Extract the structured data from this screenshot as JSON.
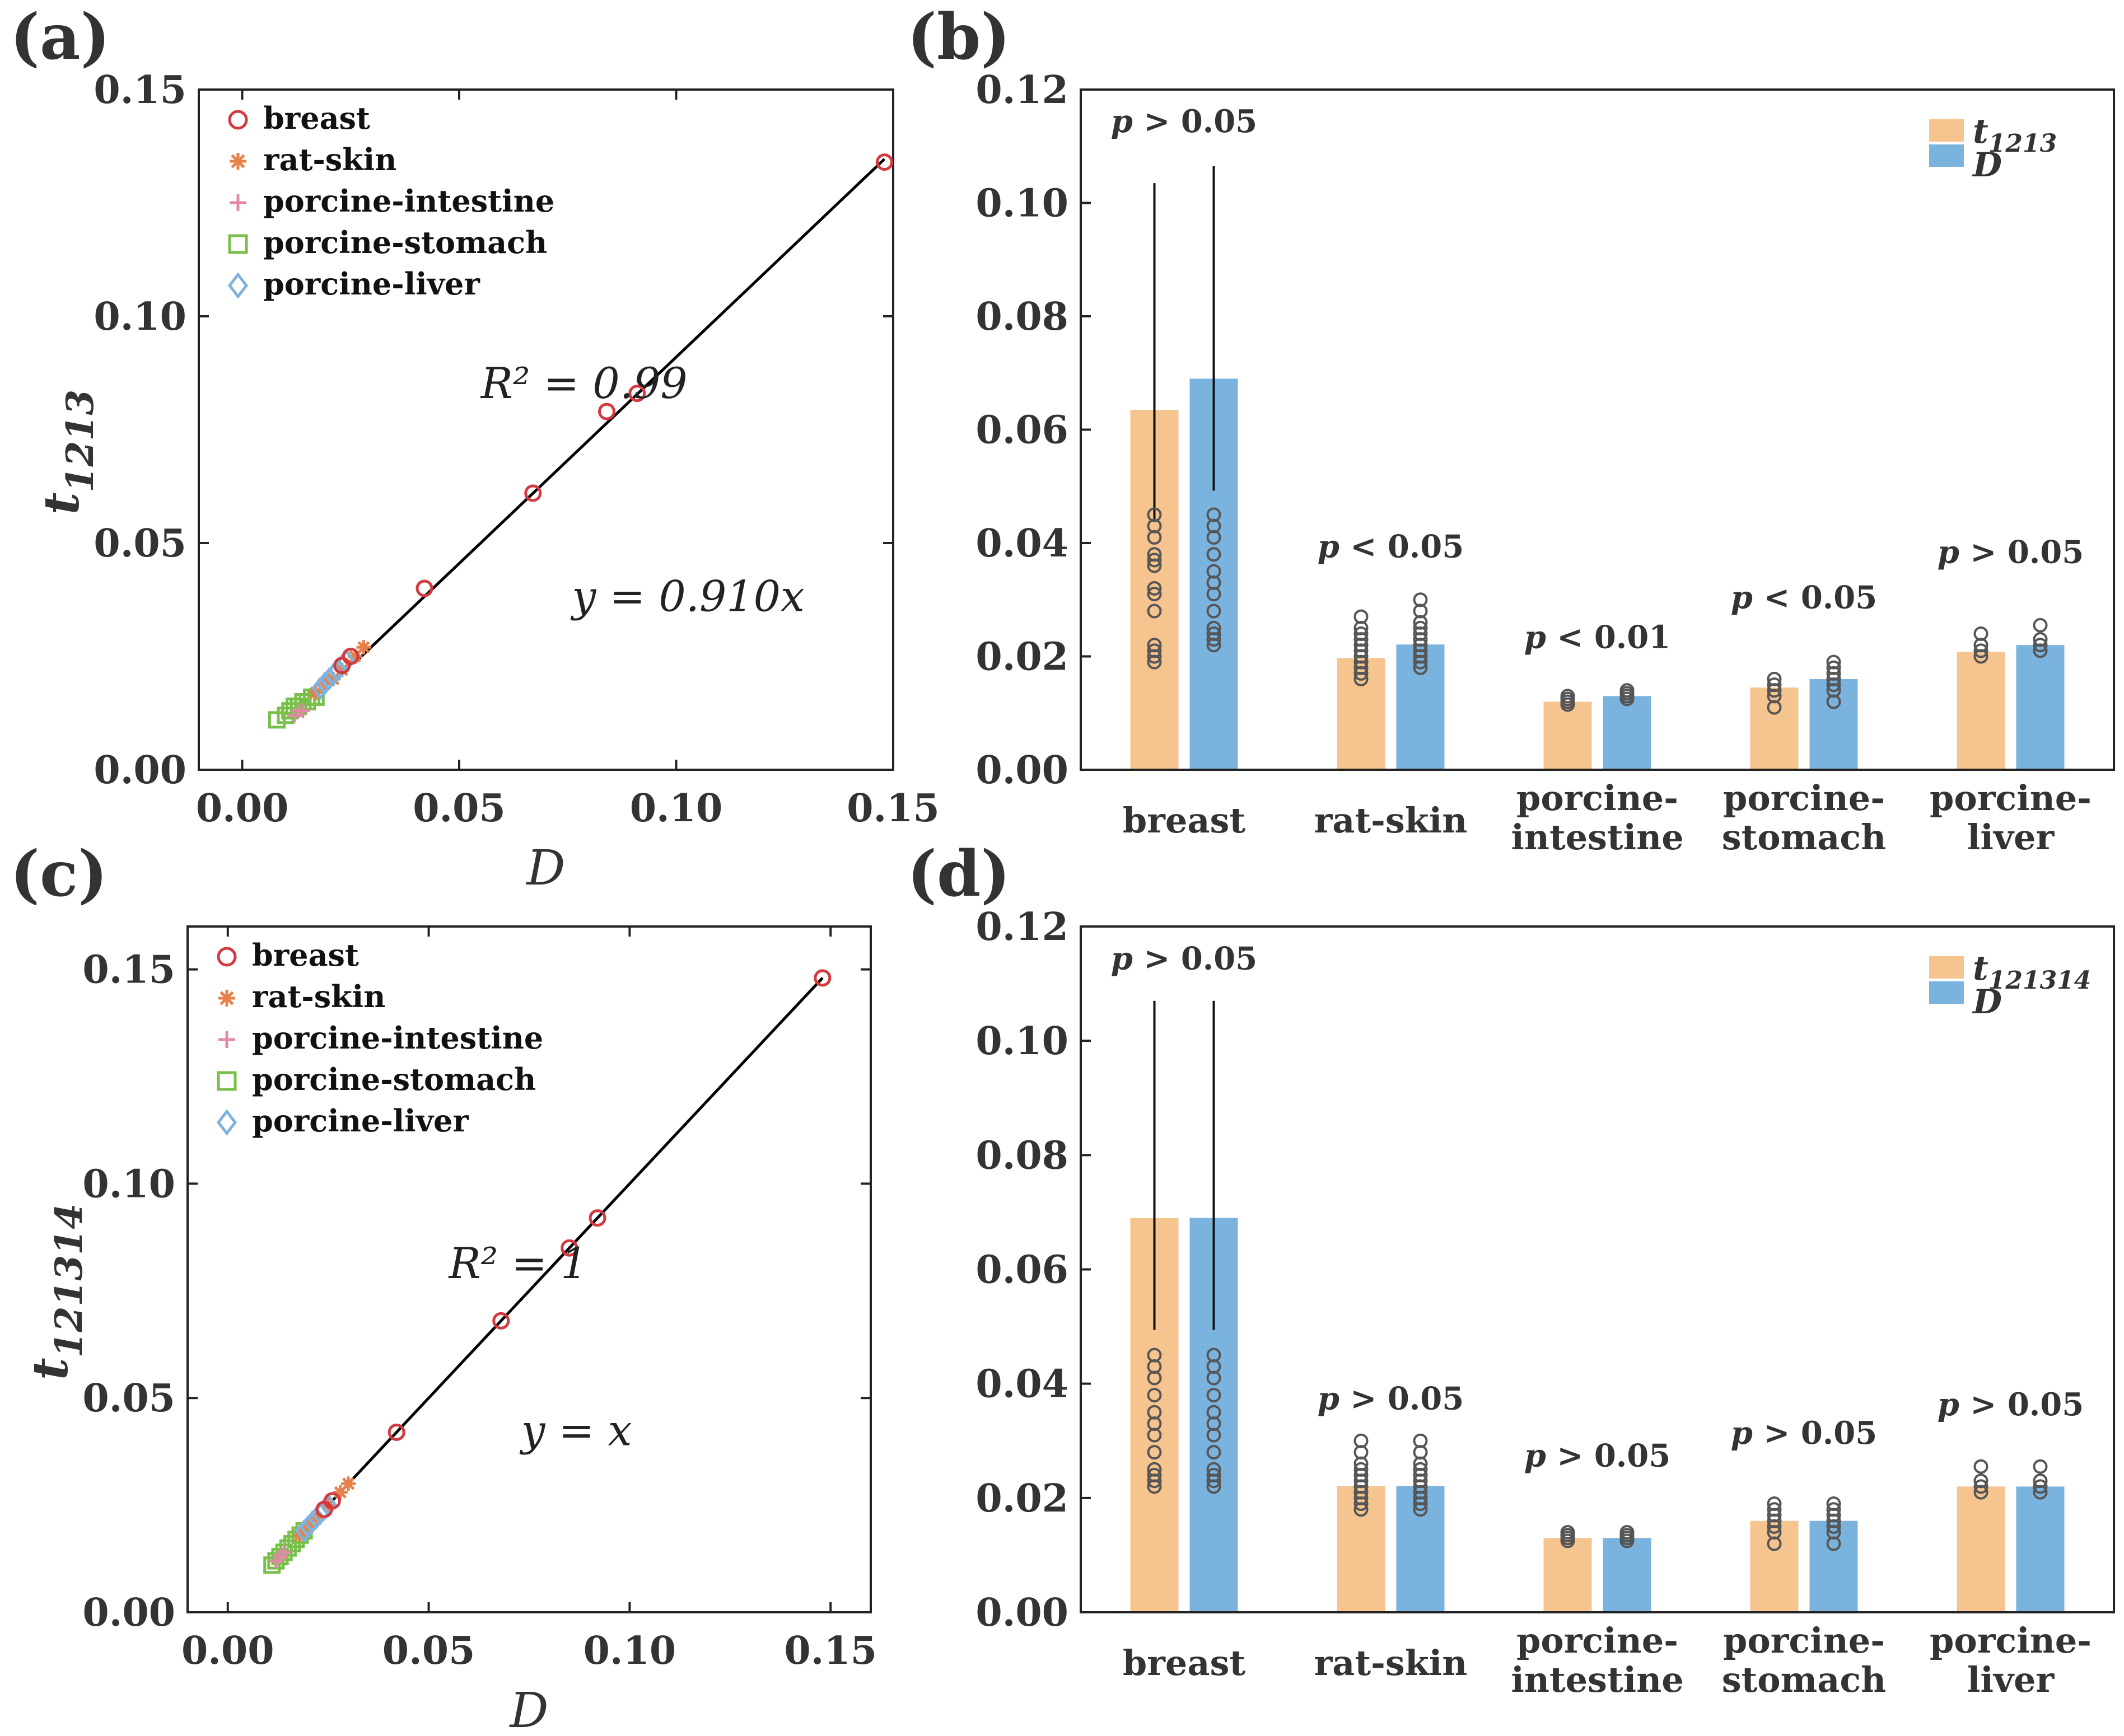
{
  "chart_data": [
    {
      "panel": "(a)",
      "type": "scatter",
      "xlabel": "D",
      "ylabel_base": "t",
      "ylabel_sub": "1213",
      "xlim": [
        -0.01,
        0.15
      ],
      "ylim": [
        0,
        0.15
      ],
      "xticks": [
        "0.00",
        "0.05",
        "0.10",
        "0.15"
      ],
      "xtick_values": [
        0,
        0.05,
        0.1,
        0.15
      ],
      "yticks": [
        "0.00",
        "0.05",
        "0.10",
        "0.15"
      ],
      "ytick_values": [
        0,
        0.05,
        0.1,
        0.15
      ],
      "annotation_r2": "R² = 0.99",
      "annotation_r2_pos": [
        0.055,
        0.082
      ],
      "annotation_fit": "y = 0.910x",
      "annotation_fit_pos": [
        0.076,
        0.035
      ],
      "fit_slope": 0.91,
      "fit_x_range": [
        0.027,
        0.148
      ],
      "legend": [
        {
          "name": "breast",
          "marker": "circle",
          "color": "#d23a3f"
        },
        {
          "name": "rat-skin",
          "marker": "asterisk",
          "color": "#e8804a"
        },
        {
          "name": "porcine-intestine",
          "marker": "plus",
          "color": "#e08aa8"
        },
        {
          "name": "porcine-stomach",
          "marker": "square",
          "color": "#78c04a"
        },
        {
          "name": "porcine-liver",
          "marker": "diamond",
          "color": "#7fb2dc"
        }
      ],
      "series": [
        {
          "name": "breast",
          "x": [
            0.023,
            0.025,
            0.042,
            0.067,
            0.084,
            0.091,
            0.148
          ],
          "y": [
            0.023,
            0.025,
            0.04,
            0.061,
            0.079,
            0.083,
            0.134
          ]
        },
        {
          "name": "rat-skin",
          "x": [
            0.017,
            0.019,
            0.021,
            0.023,
            0.026,
            0.028
          ],
          "y": [
            0.017,
            0.019,
            0.02,
            0.022,
            0.025,
            0.027
          ]
        },
        {
          "name": "porcine-intestine",
          "x": [
            0.012,
            0.013,
            0.014
          ],
          "y": [
            0.012,
            0.013,
            0.013
          ]
        },
        {
          "name": "porcine-stomach",
          "x": [
            0.008,
            0.01,
            0.011,
            0.012,
            0.013,
            0.014,
            0.015,
            0.016,
            0.017
          ],
          "y": [
            0.011,
            0.012,
            0.013,
            0.014,
            0.014,
            0.015,
            0.015,
            0.016,
            0.016
          ]
        },
        {
          "name": "porcine-liver",
          "x": [
            0.018,
            0.019,
            0.02,
            0.021,
            0.022,
            0.023,
            0.024
          ],
          "y": [
            0.018,
            0.019,
            0.02,
            0.021,
            0.022,
            0.023,
            0.024
          ]
        }
      ]
    },
    {
      "panel": "(b)",
      "type": "bar",
      "categories": [
        [
          "breast"
        ],
        [
          "rat-skin"
        ],
        [
          "porcine-",
          "intestine"
        ],
        [
          "porcine-",
          "stomach"
        ],
        [
          "porcine-",
          "liver"
        ]
      ],
      "ylim": [
        0,
        0.12
      ],
      "yticks": [
        "0.00",
        "0.02",
        "0.04",
        "0.06",
        "0.08",
        "0.10",
        "0.12"
      ],
      "ytick_values": [
        0,
        0.02,
        0.04,
        0.06,
        0.08,
        0.1,
        0.12
      ],
      "legend_t_base": "t",
      "legend_t_sub": "1213",
      "legend_d": "D",
      "series": [
        {
          "name": "t1213",
          "color": "#f6c48f",
          "values": [
            0.0635,
            0.0197,
            0.012,
            0.0145,
            0.0208
          ],
          "err_upper": [
            0.1035,
            0.0197,
            0.012,
            0.0145,
            0.0208
          ]
        },
        {
          "name": "D",
          "color": "#7ab3de",
          "values": [
            0.069,
            0.0221,
            0.013,
            0.016,
            0.022
          ],
          "err_upper": [
            0.1065,
            0.0221,
            0.013,
            0.016,
            0.022
          ]
        }
      ],
      "points": [
        [
          [
            0.019,
            0.02,
            0.021,
            0.022,
            0.028,
            0.031,
            0.032,
            0.036,
            0.037,
            0.038,
            0.041,
            0.043,
            0.045
          ],
          [
            0.022,
            0.023,
            0.024,
            0.025,
            0.028,
            0.031,
            0.033,
            0.035,
            0.038,
            0.041,
            0.043,
            0.045
          ]
        ],
        [
          [
            0.016,
            0.017,
            0.018,
            0.019,
            0.02,
            0.021,
            0.022,
            0.023,
            0.024,
            0.025,
            0.027
          ],
          [
            0.018,
            0.019,
            0.02,
            0.021,
            0.022,
            0.023,
            0.024,
            0.025,
            0.026,
            0.028,
            0.03
          ]
        ],
        [
          [
            0.0115,
            0.012,
            0.0125,
            0.013
          ],
          [
            0.0125,
            0.013,
            0.0135,
            0.014
          ]
        ],
        [
          [
            0.011,
            0.013,
            0.014,
            0.015,
            0.016
          ],
          [
            0.012,
            0.014,
            0.015,
            0.016,
            0.017,
            0.018,
            0.019
          ]
        ],
        [
          [
            0.02,
            0.021,
            0.022,
            0.024
          ],
          [
            0.021,
            0.022,
            0.023,
            0.0255
          ]
        ]
      ],
      "pvalues": [
        "p > 0.05",
        "p < 0.05",
        "p < 0.01",
        "p < 0.05",
        "p > 0.05"
      ],
      "pvalue_levels": [
        0.1125,
        0.0375,
        0.0215,
        0.0285,
        0.0365
      ]
    },
    {
      "panel": "(c)",
      "type": "scatter",
      "xlabel": "D",
      "ylabel_base": "t",
      "ylabel_sub": "121314",
      "xlim": [
        -0.01,
        0.16
      ],
      "ylim": [
        0,
        0.16
      ],
      "xticks": [
        "0.00",
        "0.05",
        "0.10",
        "0.15"
      ],
      "xtick_values": [
        0,
        0.05,
        0.1,
        0.15
      ],
      "yticks": [
        "0.00",
        "0.05",
        "0.10",
        "0.15"
      ],
      "ytick_values": [
        0,
        0.05,
        0.1,
        0.15
      ],
      "annotation_r2": "R² = 1",
      "annotation_r2_pos": [
        0.055,
        0.078
      ],
      "annotation_fit": "y = x",
      "annotation_fit_pos": [
        0.073,
        0.039
      ],
      "fit_slope": 1.0,
      "fit_x_range": [
        0.025,
        0.148
      ],
      "legend": [
        {
          "name": "breast",
          "marker": "circle",
          "color": "#d23a3f"
        },
        {
          "name": "rat-skin",
          "marker": "asterisk",
          "color": "#e8804a"
        },
        {
          "name": "porcine-intestine",
          "marker": "plus",
          "color": "#e08aa8"
        },
        {
          "name": "porcine-stomach",
          "marker": "square",
          "color": "#78c04a"
        },
        {
          "name": "porcine-liver",
          "marker": "diamond",
          "color": "#7fb2dc"
        }
      ],
      "series": [
        {
          "name": "breast",
          "x": [
            0.024,
            0.026,
            0.042,
            0.068,
            0.085,
            0.092,
            0.148
          ],
          "y": [
            0.024,
            0.026,
            0.042,
            0.068,
            0.085,
            0.092,
            0.148
          ]
        },
        {
          "name": "rat-skin",
          "x": [
            0.018,
            0.02,
            0.022,
            0.025,
            0.028,
            0.03
          ],
          "y": [
            0.018,
            0.02,
            0.022,
            0.025,
            0.028,
            0.03
          ]
        },
        {
          "name": "porcine-intestine",
          "x": [
            0.012,
            0.013,
            0.014
          ],
          "y": [
            0.012,
            0.013,
            0.014
          ]
        },
        {
          "name": "porcine-stomach",
          "x": [
            0.011,
            0.012,
            0.013,
            0.014,
            0.015,
            0.016,
            0.017,
            0.018,
            0.019
          ],
          "y": [
            0.011,
            0.012,
            0.013,
            0.014,
            0.015,
            0.016,
            0.017,
            0.018,
            0.019
          ]
        },
        {
          "name": "porcine-liver",
          "x": [
            0.019,
            0.02,
            0.021,
            0.022,
            0.023,
            0.024,
            0.025
          ],
          "y": [
            0.019,
            0.02,
            0.021,
            0.022,
            0.023,
            0.024,
            0.025
          ]
        }
      ]
    },
    {
      "panel": "(d)",
      "type": "bar",
      "categories": [
        [
          "breast"
        ],
        [
          "rat-skin"
        ],
        [
          "porcine-",
          "intestine"
        ],
        [
          "porcine-",
          "stomach"
        ],
        [
          "porcine-",
          "liver"
        ]
      ],
      "ylim": [
        0,
        0.12
      ],
      "yticks": [
        "0.00",
        "0.02",
        "0.04",
        "0.06",
        "0.08",
        "0.10",
        "0.12"
      ],
      "ytick_values": [
        0,
        0.02,
        0.04,
        0.06,
        0.08,
        0.1,
        0.12
      ],
      "legend_t_base": "t",
      "legend_t_sub": "121314",
      "legend_d": "D",
      "series": [
        {
          "name": "t121314",
          "color": "#f6c48f",
          "values": [
            0.069,
            0.0221,
            0.013,
            0.016,
            0.022
          ],
          "err_upper": [
            0.107,
            0.0221,
            0.013,
            0.016,
            0.022
          ]
        },
        {
          "name": "D",
          "color": "#7ab3de",
          "values": [
            0.069,
            0.0221,
            0.013,
            0.016,
            0.022
          ],
          "err_upper": [
            0.107,
            0.0221,
            0.013,
            0.016,
            0.022
          ]
        }
      ],
      "points": [
        [
          [
            0.022,
            0.023,
            0.024,
            0.025,
            0.028,
            0.031,
            0.033,
            0.035,
            0.038,
            0.041,
            0.043,
            0.045
          ],
          [
            0.022,
            0.023,
            0.024,
            0.025,
            0.028,
            0.031,
            0.033,
            0.035,
            0.038,
            0.041,
            0.043,
            0.045
          ]
        ],
        [
          [
            0.018,
            0.019,
            0.02,
            0.021,
            0.022,
            0.023,
            0.024,
            0.025,
            0.026,
            0.028,
            0.03
          ],
          [
            0.018,
            0.019,
            0.02,
            0.021,
            0.022,
            0.023,
            0.024,
            0.025,
            0.026,
            0.028,
            0.03
          ]
        ],
        [
          [
            0.0125,
            0.013,
            0.0135,
            0.014
          ],
          [
            0.0125,
            0.013,
            0.0135,
            0.014
          ]
        ],
        [
          [
            0.012,
            0.014,
            0.015,
            0.016,
            0.017,
            0.018,
            0.019
          ],
          [
            0.012,
            0.014,
            0.015,
            0.016,
            0.017,
            0.018,
            0.019
          ]
        ],
        [
          [
            0.021,
            0.022,
            0.023,
            0.0255
          ],
          [
            0.021,
            0.022,
            0.023,
            0.0255
          ]
        ]
      ],
      "pvalues": [
        "p > 0.05",
        "p > 0.05",
        "p > 0.05",
        "p > 0.05",
        "p > 0.05"
      ],
      "pvalue_levels": [
        0.1125,
        0.0355,
        0.0255,
        0.0295,
        0.0345
      ]
    }
  ]
}
